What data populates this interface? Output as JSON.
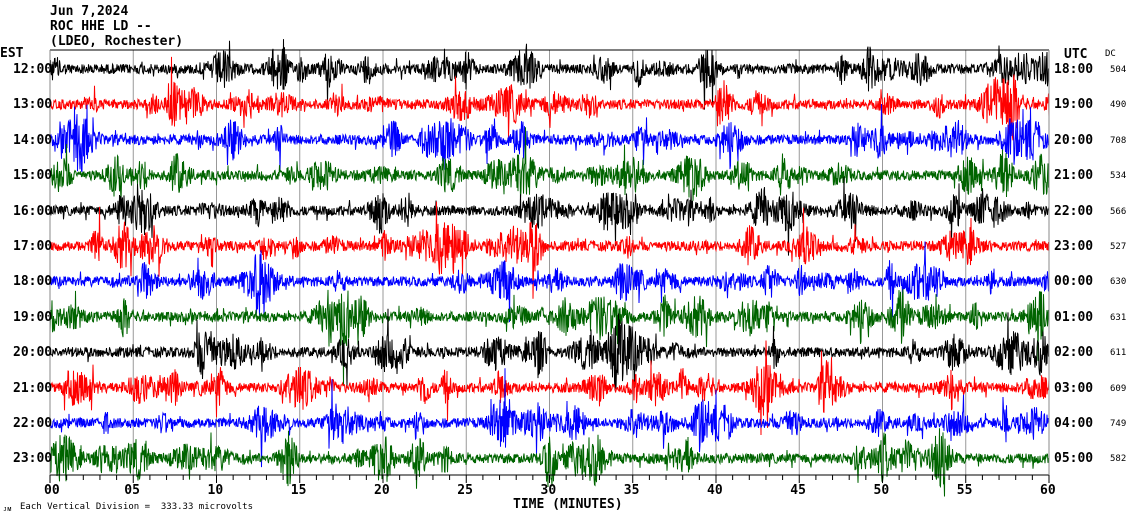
{
  "header": {
    "date": "Jun 7,2024",
    "station": "ROC HHE LD --",
    "network": "(LDEO, Rochester)"
  },
  "left_axis_title": "EST",
  "right_axis_title": "UTC",
  "dc_title": "DC",
  "footer": {
    "scale_text": "Each Vertical Division =  333.33 microvolts",
    "corner_mark": "ᴊᴍ"
  },
  "chart_data": {
    "type": "line",
    "title": "Jun 7,2024 ROC HHE LD -- (LDEO, Rochester)",
    "xlabel": "TIME (MINUTES)",
    "xlim": [
      0,
      60
    ],
    "x_ticks": [
      "00",
      "05",
      "10",
      "15",
      "20",
      "25",
      "30",
      "35",
      "40",
      "45",
      "50",
      "55",
      "60"
    ],
    "grid": true,
    "colors": [
      "#000000",
      "#ff0000",
      "#0000ff",
      "#006400"
    ],
    "rows": [
      {
        "est": "12:00",
        "utc": "18:00",
        "dc": "504"
      },
      {
        "est": "13:00",
        "utc": "19:00",
        "dc": "490"
      },
      {
        "est": "14:00",
        "utc": "20:00",
        "dc": "708"
      },
      {
        "est": "15:00",
        "utc": "21:00",
        "dc": "534"
      },
      {
        "est": "16:00",
        "utc": "22:00",
        "dc": "566"
      },
      {
        "est": "17:00",
        "utc": "23:00",
        "dc": "527"
      },
      {
        "est": "18:00",
        "utc": "00:00",
        "dc": "630"
      },
      {
        "est": "19:00",
        "utc": "01:00",
        "dc": "631"
      },
      {
        "est": "20:00",
        "utc": "02:00",
        "dc": "611"
      },
      {
        "est": "21:00",
        "utc": "03:00",
        "dc": "609"
      },
      {
        "est": "22:00",
        "utc": "04:00",
        "dc": "749"
      },
      {
        "est": "23:00",
        "utc": "05:00",
        "dc": "582"
      }
    ]
  }
}
